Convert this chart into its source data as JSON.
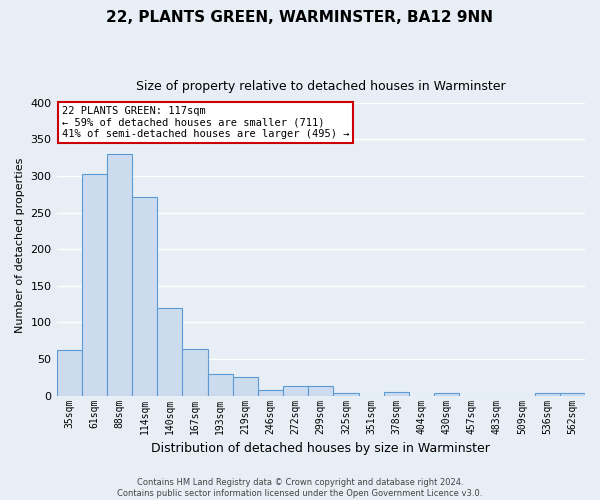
{
  "title": "22, PLANTS GREEN, WARMINSTER, BA12 9NN",
  "subtitle": "Size of property relative to detached houses in Warminster",
  "xlabel": "Distribution of detached houses by size in Warminster",
  "ylabel": "Number of detached properties",
  "categories": [
    "35sqm",
    "61sqm",
    "88sqm",
    "114sqm",
    "140sqm",
    "167sqm",
    "193sqm",
    "219sqm",
    "246sqm",
    "272sqm",
    "299sqm",
    "325sqm",
    "351sqm",
    "378sqm",
    "404sqm",
    "430sqm",
    "457sqm",
    "483sqm",
    "509sqm",
    "536sqm",
    "562sqm"
  ],
  "values": [
    63,
    303,
    330,
    272,
    120,
    64,
    29,
    25,
    8,
    13,
    13,
    4,
    0,
    5,
    0,
    4,
    0,
    0,
    0,
    4,
    4
  ],
  "bar_color": "#ccdcee",
  "bar_edge_color": "#5b9bd5",
  "background_color": "#e8eef5",
  "annotation_line1": "22 PLANTS GREEN: 117sqm",
  "annotation_line2": "← 59% of detached houses are smaller (711)",
  "annotation_line3": "41% of semi-detached houses are larger (495) →",
  "annotation_box_color": "#ffffff",
  "annotation_box_edge_color": "#cc0000",
  "footnote": "Contains HM Land Registry data © Crown copyright and database right 2024.\nContains public sector information licensed under the Open Government Licence v3.0.",
  "ylim": [
    0,
    410
  ],
  "yticks": [
    0,
    50,
    100,
    150,
    200,
    250,
    300,
    350,
    400
  ],
  "grid_color": "#ffffff"
}
